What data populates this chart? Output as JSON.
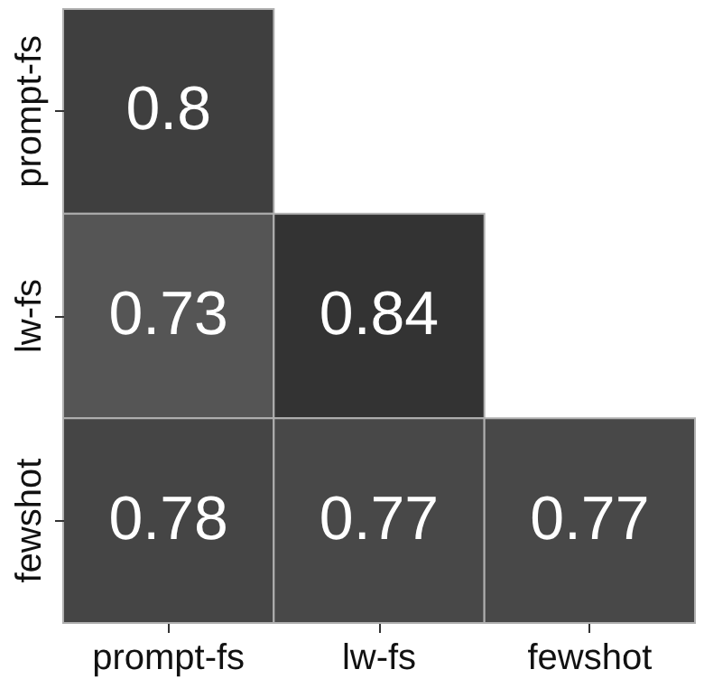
{
  "chart_data": {
    "type": "heatmap",
    "categories": [
      "prompt-fs",
      "lw-fs",
      "fewshot"
    ],
    "y_categories": [
      "prompt-fs",
      "lw-fs",
      "fewshot"
    ],
    "cells": [
      [
        0.8,
        null,
        null
      ],
      [
        0.73,
        0.84,
        null
      ],
      [
        0.78,
        0.77,
        0.77
      ]
    ],
    "data_labels": true
  }
}
